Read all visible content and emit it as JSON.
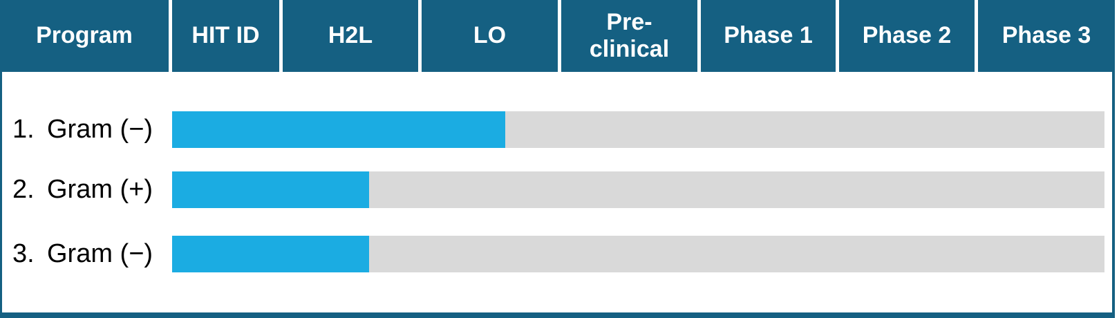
{
  "header": {
    "columns": [
      {
        "label": "Program"
      },
      {
        "label": "HIT ID"
      },
      {
        "label": "H2L"
      },
      {
        "label": "LO"
      },
      {
        "label": "Pre-clinical"
      },
      {
        "label": "Phase 1"
      },
      {
        "label": "Phase 2"
      },
      {
        "label": "Phase 3"
      }
    ]
  },
  "chart_data": {
    "type": "bar",
    "orientation": "horizontal",
    "stages": [
      "HIT ID",
      "H2L",
      "LO",
      "Pre-clinical",
      "Phase 1",
      "Phase 2",
      "Phase 3"
    ],
    "rows": [
      {
        "index_label": "1.",
        "program": "Gram (−)",
        "progress_pct": 35.7,
        "stage_reached": "LO"
      },
      {
        "index_label": "2.",
        "program": "Gram (+)",
        "progress_pct": 21.1,
        "stage_reached": "H2L"
      },
      {
        "index_label": "3.",
        "program": "Gram (−)",
        "progress_pct": 21.1,
        "stage_reached": "H2L"
      }
    ],
    "legend": "none",
    "grid": "off"
  },
  "colors": {
    "header_teal": "#156082",
    "bar_blue": "#1bace2",
    "track_gray": "#d9d9d9",
    "separator_white": "#ffffff",
    "header_text": "#ffffff",
    "label_text": "#000000"
  }
}
